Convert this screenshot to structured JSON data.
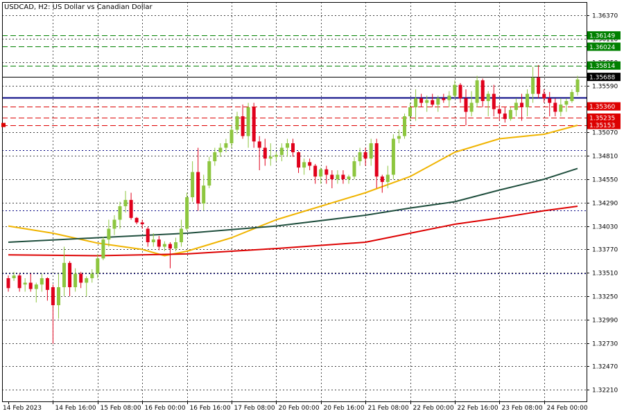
{
  "header": {
    "title": "USDCAD, H2:  US Dollar vs Canadian Dollar"
  },
  "chart_data": {
    "type": "candlestick",
    "ylim": [
      1.3208,
      1.3652
    ],
    "grid": true,
    "x_tick_labels": [
      "14 Feb 2023",
      "14 Feb 16:00",
      "15 Feb 08:00",
      "16 Feb 00:00",
      "16 Feb 16:00",
      "17 Feb 08:00",
      "20 Feb 00:00",
      "20 Feb 16:00",
      "21 Feb 08:00",
      "22 Feb 00:00",
      "22 Feb 16:00",
      "23 Feb 08:00",
      "24 Feb 00:00"
    ],
    "x_tick_indices": [
      0,
      8,
      16,
      24,
      32,
      40,
      48,
      56,
      64,
      72,
      80,
      88,
      96
    ],
    "y_tick_labels": [
      "1.36370",
      "1.36110",
      "1.35850",
      "1.35590",
      "1.35070",
      "1.34810",
      "1.34550",
      "1.34290",
      "1.34030",
      "1.33770",
      "1.33510",
      "1.33250",
      "1.32990",
      "1.32730",
      "1.32470",
      "1.32210"
    ],
    "y_tick_values": [
      1.3637,
      1.3611,
      1.3585,
      1.3559,
      1.3507,
      1.3481,
      1.3455,
      1.3429,
      1.3403,
      1.3377,
      1.3351,
      1.3325,
      1.3299,
      1.3273,
      1.3247,
      1.3221
    ],
    "price_labels": [
      {
        "value": 1.36149,
        "text": "1.36149",
        "color": "#008000"
      },
      {
        "value": 1.36024,
        "text": "1.36024",
        "color": "#008000"
      },
      {
        "value": 1.35814,
        "text": "1.35814",
        "color": "#008000"
      },
      {
        "value": 1.35688,
        "text": "1.35688",
        "color": "#000000"
      },
      {
        "value": 1.3536,
        "text": "1.35360",
        "color": "#dd0000"
      },
      {
        "value": 1.35235,
        "text": "1.35235",
        "color": "#dd0000"
      },
      {
        "value": 1.35153,
        "text": "1.35153",
        "color": "#dd0000"
      }
    ],
    "hlines": [
      {
        "value": 1.36149,
        "color": "#008000",
        "style": "longdash"
      },
      {
        "value": 1.36024,
        "color": "#008000",
        "style": "longdash"
      },
      {
        "value": 1.35814,
        "color": "#008000",
        "style": "longdash"
      },
      {
        "value": 1.35688,
        "color": "#000000",
        "style": "solid"
      },
      {
        "value": 1.35461,
        "color": "#000080",
        "style": "solid-thick"
      },
      {
        "value": 1.3536,
        "color": "#dd0000",
        "style": "longdash"
      },
      {
        "value": 1.35235,
        "color": "#dd0000",
        "style": "longdash"
      },
      {
        "value": 1.35153,
        "color": "#dd0000",
        "style": "longdash"
      },
      {
        "value": 1.3487,
        "color": "#000080",
        "style": "dotted"
      },
      {
        "value": 1.342,
        "color": "#000080",
        "style": "dotted"
      },
      {
        "value": 1.335,
        "color": "#000080",
        "style": "dotted"
      }
    ],
    "candles": [
      [
        1.3345,
        1.3348,
        1.333,
        1.3334
      ],
      [
        1.3345,
        1.3352,
        1.3342,
        1.3348
      ],
      [
        1.3348,
        1.335,
        1.333,
        1.3334
      ],
      [
        1.3338,
        1.3345,
        1.333,
        1.334
      ],
      [
        1.334,
        1.335,
        1.333,
        1.3333
      ],
      [
        1.3333,
        1.334,
        1.3318,
        1.3338
      ],
      [
        1.3338,
        1.335,
        1.333,
        1.3345
      ],
      [
        1.3345,
        1.3346,
        1.332,
        1.3332
      ],
      [
        1.3335,
        1.3338,
        1.3272,
        1.3315
      ],
      [
        1.3315,
        1.335,
        1.33,
        1.3335
      ],
      [
        1.3335,
        1.338,
        1.3325,
        1.3362
      ],
      [
        1.3362,
        1.3364,
        1.3325,
        1.3335
      ],
      [
        1.3335,
        1.3356,
        1.333,
        1.335
      ],
      [
        1.335,
        1.3352,
        1.3334,
        1.334
      ],
      [
        1.334,
        1.3347,
        1.3325,
        1.3345
      ],
      [
        1.3345,
        1.3355,
        1.334,
        1.335
      ],
      [
        1.335,
        1.3372,
        1.3345,
        1.3367
      ],
      [
        1.3367,
        1.3391,
        1.3365,
        1.3388
      ],
      [
        1.3388,
        1.341,
        1.338,
        1.34
      ],
      [
        1.34,
        1.3415,
        1.3393,
        1.341
      ],
      [
        1.341,
        1.343,
        1.34,
        1.3425
      ],
      [
        1.3425,
        1.3442,
        1.3418,
        1.3432
      ],
      [
        1.3432,
        1.344,
        1.341,
        1.3412
      ],
      [
        1.3412,
        1.3413,
        1.3405,
        1.3407
      ],
      [
        1.3407,
        1.341,
        1.34,
        1.3405
      ],
      [
        1.34,
        1.3402,
        1.338,
        1.3385
      ],
      [
        1.3385,
        1.3395,
        1.338,
        1.3388
      ],
      [
        1.3388,
        1.3392,
        1.3376,
        1.338
      ],
      [
        1.338,
        1.3386,
        1.3375,
        1.3383
      ],
      [
        1.3383,
        1.3385,
        1.3356,
        1.3378
      ],
      [
        1.3378,
        1.339,
        1.3375,
        1.3385
      ],
      [
        1.3385,
        1.341,
        1.338,
        1.34
      ],
      [
        1.34,
        1.344,
        1.3398,
        1.3435
      ],
      [
        1.3435,
        1.3475,
        1.343,
        1.3463
      ],
      [
        1.3463,
        1.349,
        1.342,
        1.3428
      ],
      [
        1.3428,
        1.346,
        1.342,
        1.3448
      ],
      [
        1.3448,
        1.348,
        1.3445,
        1.3475
      ],
      [
        1.3475,
        1.349,
        1.347,
        1.3485
      ],
      [
        1.3485,
        1.3495,
        1.348,
        1.349
      ],
      [
        1.349,
        1.35,
        1.3485,
        1.3495
      ],
      [
        1.3495,
        1.3515,
        1.349,
        1.351
      ],
      [
        1.351,
        1.353,
        1.3505,
        1.3525
      ],
      [
        1.3525,
        1.3538,
        1.35,
        1.3503
      ],
      [
        1.3503,
        1.354,
        1.349,
        1.3535
      ],
      [
        1.3535,
        1.354,
        1.349,
        1.3497
      ],
      [
        1.3497,
        1.3503,
        1.3465,
        1.349
      ],
      [
        1.349,
        1.35,
        1.347,
        1.3478
      ],
      [
        1.3478,
        1.3495,
        1.347,
        1.348
      ],
      [
        1.348,
        1.3485,
        1.3475,
        1.3482
      ],
      [
        1.3482,
        1.3495,
        1.3475,
        1.349
      ],
      [
        1.349,
        1.35,
        1.348,
        1.3495
      ],
      [
        1.3495,
        1.35,
        1.348,
        1.3485
      ],
      [
        1.3485,
        1.3486,
        1.3462,
        1.3468
      ],
      [
        1.3468,
        1.3478,
        1.346,
        1.3474
      ],
      [
        1.3474,
        1.3478,
        1.3465,
        1.347
      ],
      [
        1.347,
        1.3472,
        1.345,
        1.3458
      ],
      [
        1.3458,
        1.3468,
        1.345,
        1.3466
      ],
      [
        1.3466,
        1.347,
        1.345,
        1.346
      ],
      [
        1.346,
        1.3465,
        1.3445,
        1.3455
      ],
      [
        1.3455,
        1.3465,
        1.345,
        1.346
      ],
      [
        1.346,
        1.3465,
        1.345,
        1.3455
      ],
      [
        1.3455,
        1.346,
        1.345,
        1.3458
      ],
      [
        1.3458,
        1.348,
        1.3455,
        1.3475
      ],
      [
        1.3475,
        1.349,
        1.347,
        1.3485
      ],
      [
        1.3485,
        1.349,
        1.347,
        1.3478
      ],
      [
        1.3478,
        1.35,
        1.347,
        1.3495
      ],
      [
        1.3495,
        1.35,
        1.3445,
        1.3458
      ],
      [
        1.3458,
        1.346,
        1.344,
        1.3452
      ],
      [
        1.3452,
        1.347,
        1.3445,
        1.346
      ],
      [
        1.346,
        1.3505,
        1.3455,
        1.35
      ],
      [
        1.35,
        1.351,
        1.3495,
        1.3503
      ],
      [
        1.3503,
        1.3528,
        1.35,
        1.3525
      ],
      [
        1.3525,
        1.354,
        1.352,
        1.3535
      ],
      [
        1.3535,
        1.3555,
        1.352,
        1.3545
      ],
      [
        1.3545,
        1.355,
        1.3535,
        1.354
      ],
      [
        1.354,
        1.3548,
        1.353,
        1.3543
      ],
      [
        1.3543,
        1.355,
        1.3535,
        1.3538
      ],
      [
        1.3538,
        1.3548,
        1.353,
        1.3545
      ],
      [
        1.3545,
        1.355,
        1.354,
        1.3543
      ],
      [
        1.3543,
        1.3553,
        1.3535,
        1.3548
      ],
      [
        1.3548,
        1.3565,
        1.3545,
        1.356
      ],
      [
        1.356,
        1.3562,
        1.354,
        1.3545
      ],
      [
        1.3545,
        1.3555,
        1.3515,
        1.353
      ],
      [
        1.353,
        1.3553,
        1.3525,
        1.354
      ],
      [
        1.354,
        1.357,
        1.3535,
        1.3565
      ],
      [
        1.3565,
        1.3567,
        1.3535,
        1.3542
      ],
      [
        1.3542,
        1.3553,
        1.3525,
        1.355
      ],
      [
        1.355,
        1.356,
        1.3525,
        1.3533
      ],
      [
        1.3533,
        1.3538,
        1.352,
        1.3528
      ],
      [
        1.3528,
        1.3535,
        1.3518,
        1.3522
      ],
      [
        1.3522,
        1.3535,
        1.352,
        1.3532
      ],
      [
        1.3532,
        1.3545,
        1.3525,
        1.354
      ],
      [
        1.354,
        1.355,
        1.352,
        1.3535
      ],
      [
        1.3535,
        1.3555,
        1.3525,
        1.355
      ],
      [
        1.355,
        1.358,
        1.354,
        1.3568
      ],
      [
        1.3568,
        1.3582,
        1.3545,
        1.355
      ],
      [
        1.355,
        1.3555,
        1.354,
        1.3545
      ],
      [
        1.3545,
        1.3552,
        1.3525,
        1.354
      ],
      [
        1.354,
        1.3545,
        1.3525,
        1.353
      ],
      [
        1.353,
        1.3545,
        1.3525,
        1.3538
      ],
      [
        1.3538,
        1.3545,
        1.353,
        1.3542
      ],
      [
        1.3542,
        1.3555,
        1.354,
        1.3552
      ],
      [
        1.3552,
        1.357,
        1.3548,
        1.3566
      ]
    ],
    "ma_series": [
      {
        "color": "#f0b400",
        "points": [
          [
            0,
            1.3403
          ],
          [
            8,
            1.3395
          ],
          [
            16,
            1.3384
          ],
          [
            24,
            1.3377
          ],
          [
            28,
            1.337
          ],
          [
            32,
            1.3375
          ],
          [
            40,
            1.339
          ],
          [
            48,
            1.341
          ],
          [
            56,
            1.3425
          ],
          [
            64,
            1.344
          ],
          [
            72,
            1.3458
          ],
          [
            80,
            1.3485
          ],
          [
            88,
            1.35
          ],
          [
            96,
            1.3505
          ],
          [
            102,
            1.3515
          ]
        ]
      },
      {
        "color": "#1f4e3d",
        "points": [
          [
            0,
            1.3385
          ],
          [
            16,
            1.339
          ],
          [
            32,
            1.3395
          ],
          [
            48,
            1.3403
          ],
          [
            64,
            1.3415
          ],
          [
            72,
            1.3423
          ],
          [
            80,
            1.343
          ],
          [
            88,
            1.3443
          ],
          [
            96,
            1.3455
          ],
          [
            102,
            1.3467
          ]
        ]
      },
      {
        "color": "#dd0000",
        "points": [
          [
            0,
            1.3371
          ],
          [
            16,
            1.337
          ],
          [
            32,
            1.3372
          ],
          [
            48,
            1.3378
          ],
          [
            64,
            1.3385
          ],
          [
            72,
            1.3395
          ],
          [
            80,
            1.3405
          ],
          [
            88,
            1.3412
          ],
          [
            96,
            1.342
          ],
          [
            102,
            1.3425
          ]
        ]
      }
    ]
  }
}
